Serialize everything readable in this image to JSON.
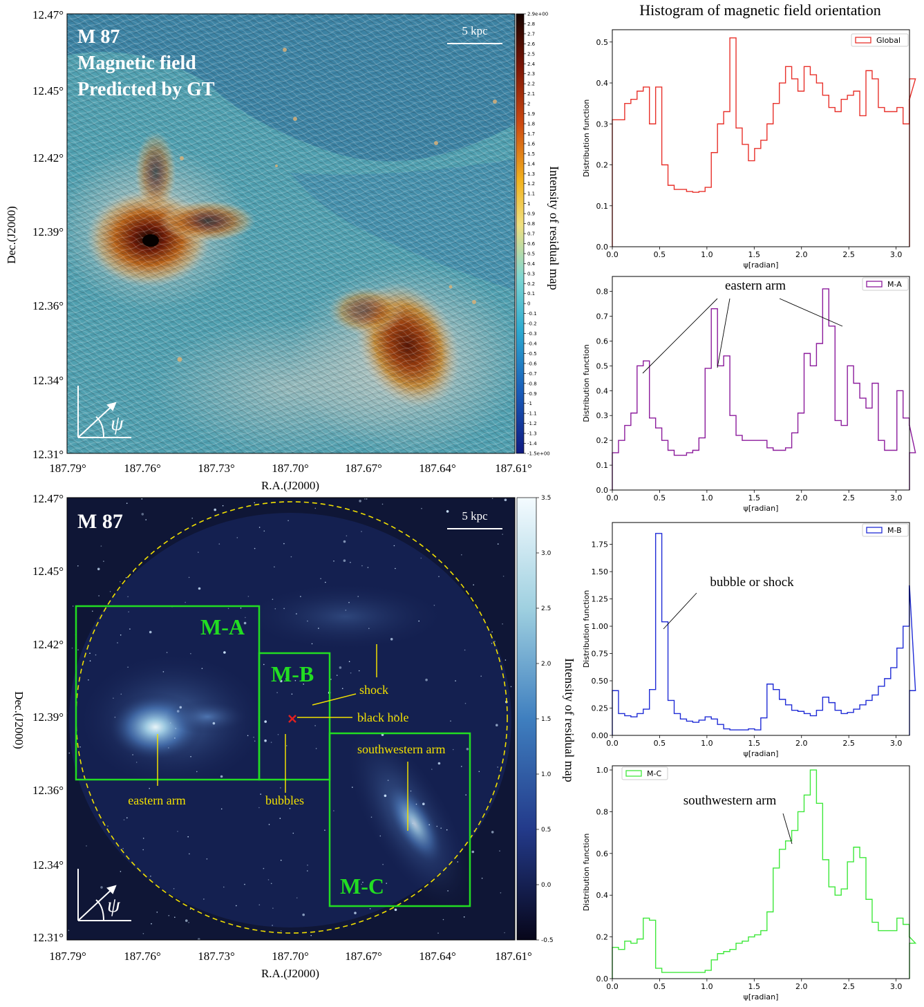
{
  "hist_title": "Histogram of magnetic field orientation",
  "maps": {
    "ra_ticks": [
      "187.79°",
      "187.76°",
      "187.73°",
      "187.70°",
      "187.67°",
      "187.64°",
      "187.61°"
    ],
    "dec_ticks": [
      "12.47°",
      "12.45°",
      "12.42°",
      "12.39°",
      "12.36°",
      "12.34°",
      "12.31°"
    ],
    "xlabel": "R.A.(J2000)",
    "ylabel": "Dec.(J2000)",
    "scalebar": "5 kpc",
    "psi_symbol": "ψ",
    "colorbar_label": "Intensity of residual map",
    "top": {
      "title_lines": [
        "M 87",
        "Magnetic field",
        "Predicted by GT"
      ],
      "colorbar_ticks": [
        "2.9e+00",
        "2.8",
        "2.7",
        "2.6",
        "2.5",
        "2.4",
        "2.3",
        "2.2",
        "2.1",
        "2",
        "1.9",
        "1.8",
        "1.7",
        "1.6",
        "1.5",
        "1.4",
        "1.3",
        "1.2",
        "1.1",
        "1",
        "0.9",
        "0.8",
        "0.7",
        "0.6",
        "0.5",
        "0.4",
        "0.3",
        "0.2",
        "0.1",
        "0",
        "-0.1",
        "-0.2",
        "-0.3",
        "-0.4",
        "-0.5",
        "-0.6",
        "-0.7",
        "-0.8",
        "-0.9",
        "-1",
        "-1.1",
        "-1.2",
        "-1.3",
        "-1.4",
        "-1.5e+00"
      ]
    },
    "bottom": {
      "title": "M 87",
      "colorbar_ticks": [
        "3.5",
        "3.0",
        "2.5",
        "2.0",
        "1.5",
        "1.0",
        "0.5",
        "0.0",
        "-0.5"
      ],
      "regions": [
        "M-A",
        "M-B",
        "M-C"
      ],
      "annotations": {
        "shock": "shock",
        "black_hole": "black hole",
        "southwestern_arm": "southwestern arm",
        "eastern_arm": "eastern arm",
        "bubbles": "bubbles"
      },
      "colors": {
        "region_box": "#22dd22",
        "annotation": "#f2e000",
        "black_hole_marker": "#e02020"
      }
    }
  },
  "chart_data": [
    {
      "type": "line",
      "legend": "Global",
      "color": "#e8302a",
      "xlabel": "ψ[radian]",
      "ylabel": "Distribution function",
      "xlim": [
        0,
        3.1416
      ],
      "ylim": [
        0,
        0.53
      ],
      "xticks": [
        "0.0",
        "0.5",
        "1.0",
        "1.5",
        "2.0",
        "2.5",
        "3.0"
      ],
      "yticks": [
        "0.0",
        "0.1",
        "0.2",
        "0.3",
        "0.4",
        "0.5"
      ],
      "bin_width": 0.0654,
      "values": [
        0.31,
        0.31,
        0.35,
        0.36,
        0.38,
        0.39,
        0.3,
        0.39,
        0.2,
        0.15,
        0.14,
        0.14,
        0.135,
        0.133,
        0.135,
        0.145,
        0.23,
        0.3,
        0.33,
        0.51,
        0.29,
        0.25,
        0.21,
        0.24,
        0.26,
        0.3,
        0.35,
        0.4,
        0.44,
        0.41,
        0.38,
        0.44,
        0.42,
        0.4,
        0.37,
        0.34,
        0.33,
        0.36,
        0.37,
        0.38,
        0.32,
        0.43,
        0.41,
        0.34,
        0.33,
        0.33,
        0.34,
        0.3,
        0.36,
        0.41
      ]
    },
    {
      "type": "line",
      "legend": "M-A",
      "color": "#8b1a9b",
      "annotation": "eastern arm",
      "xlabel": "ψ[radian]",
      "ylabel": "Distribution function",
      "xlim": [
        0,
        3.1416
      ],
      "ylim": [
        0,
        0.86
      ],
      "xticks": [
        "0.0",
        "0.5",
        "1.0",
        "1.5",
        "2.0",
        "2.5",
        "3.0"
      ],
      "yticks": [
        "0.0",
        "0.1",
        "0.2",
        "0.3",
        "0.4",
        "0.5",
        "0.6",
        "0.7",
        "0.8"
      ],
      "bin_width": 0.0654,
      "values": [
        0.15,
        0.2,
        0.26,
        0.31,
        0.5,
        0.52,
        0.29,
        0.25,
        0.2,
        0.16,
        0.14,
        0.14,
        0.15,
        0.16,
        0.21,
        0.49,
        0.73,
        0.5,
        0.54,
        0.3,
        0.22,
        0.2,
        0.2,
        0.2,
        0.2,
        0.17,
        0.16,
        0.16,
        0.17,
        0.23,
        0.31,
        0.55,
        0.5,
        0.59,
        0.81,
        0.66,
        0.28,
        0.26,
        0.5,
        0.43,
        0.37,
        0.33,
        0.43,
        0.2,
        0.16,
        0.16,
        0.4,
        0.29,
        0.26,
        0.15
      ]
    },
    {
      "type": "line",
      "legend": "M-B",
      "color": "#1f2bd6",
      "annotation": "bubble or shock",
      "xlabel": "ψ[radian]",
      "ylabel": "Distribution function",
      "xlim": [
        0,
        3.1416
      ],
      "ylim": [
        0,
        1.95
      ],
      "xticks": [
        "0.0",
        "0.5",
        "1.0",
        "1.5",
        "2.0",
        "2.5",
        "3.0"
      ],
      "yticks": [
        "0.00",
        "0.25",
        "0.50",
        "0.75",
        "1.00",
        "1.25",
        "1.50",
        "1.75"
      ],
      "bin_width": 0.0654,
      "values": [
        0.41,
        0.2,
        0.18,
        0.17,
        0.2,
        0.24,
        0.42,
        1.85,
        1.04,
        0.32,
        0.2,
        0.15,
        0.13,
        0.12,
        0.14,
        0.17,
        0.15,
        0.1,
        0.06,
        0.05,
        0.05,
        0.05,
        0.06,
        0.05,
        0.16,
        0.47,
        0.42,
        0.33,
        0.28,
        0.23,
        0.22,
        0.2,
        0.18,
        0.23,
        0.35,
        0.3,
        0.23,
        0.2,
        0.21,
        0.24,
        0.28,
        0.32,
        0.37,
        0.45,
        0.52,
        0.62,
        0.8,
        1.0,
        1.37,
        0.41
      ]
    },
    {
      "type": "line",
      "legend": "M-C",
      "color": "#3ee83a",
      "annotation": "southwestern arm",
      "xlabel": "ψ[radian]",
      "ylabel": "Distribution function",
      "xlim": [
        0,
        3.1416
      ],
      "ylim": [
        0,
        1.02
      ],
      "xticks": [
        "0.0",
        "0.5",
        "1.0",
        "1.5",
        "2.0",
        "2.5",
        "3.0"
      ],
      "yticks": [
        "0.0",
        "0.2",
        "0.4",
        "0.6",
        "0.8",
        "1.0"
      ],
      "bin_width": 0.0654,
      "values": [
        0.15,
        0.14,
        0.18,
        0.17,
        0.19,
        0.29,
        0.28,
        0.05,
        0.03,
        0.03,
        0.03,
        0.03,
        0.03,
        0.03,
        0.03,
        0.04,
        0.09,
        0.12,
        0.13,
        0.14,
        0.17,
        0.18,
        0.2,
        0.21,
        0.23,
        0.32,
        0.53,
        0.62,
        0.66,
        0.71,
        0.8,
        0.88,
        1.0,
        0.84,
        0.57,
        0.44,
        0.4,
        0.43,
        0.56,
        0.63,
        0.58,
        0.38,
        0.27,
        0.23,
        0.23,
        0.23,
        0.29,
        0.26,
        0.2,
        0.17
      ]
    }
  ]
}
